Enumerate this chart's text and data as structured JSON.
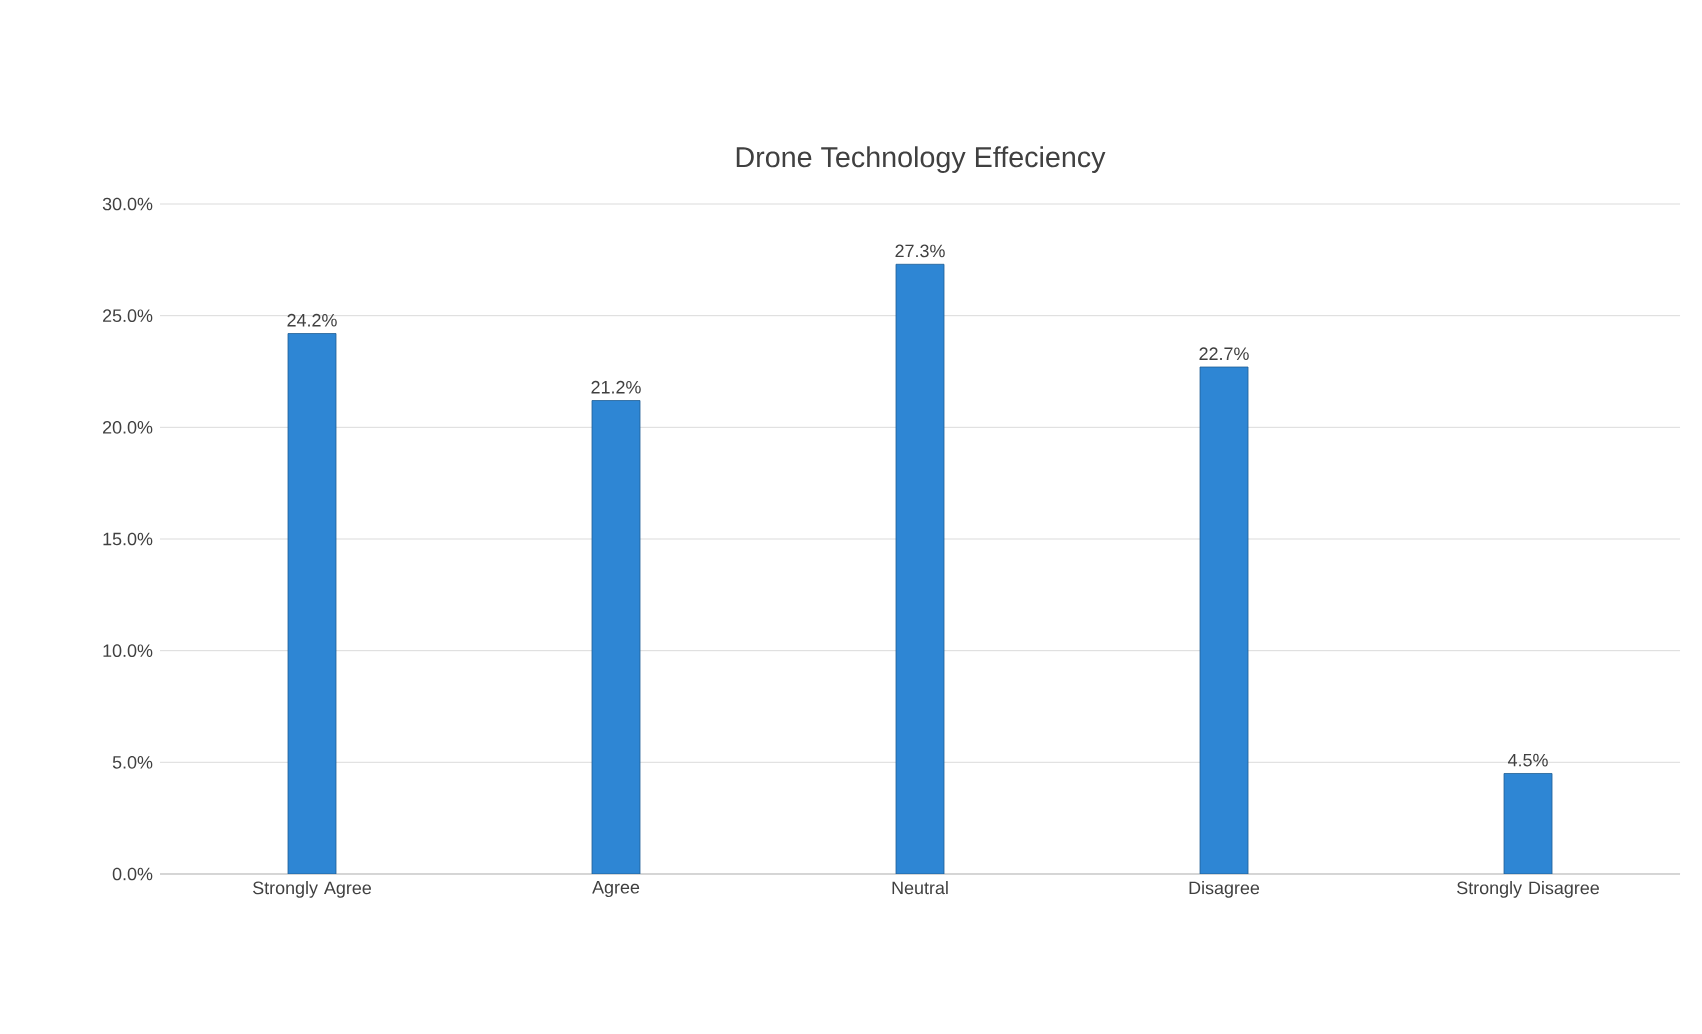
{
  "chart_data": {
    "type": "bar",
    "title": "Drone Technology Effeciency",
    "categories": [
      "Strongly Agree",
      "Agree",
      "Neutral",
      "Disagree",
      "Strongly Disagree"
    ],
    "values": [
      24.2,
      21.2,
      27.3,
      22.7,
      4.5
    ],
    "value_labels": [
      "24.2%",
      "21.2%",
      "27.3%",
      "22.7%",
      "4.5%"
    ],
    "color": "#2e86d4",
    "ylim": [
      0,
      30
    ],
    "yticks": [
      {
        "value": 0,
        "label": "0.0%"
      },
      {
        "value": 5,
        "label": "5.0%"
      },
      {
        "value": 10,
        "label": "10.0%"
      },
      {
        "value": 15,
        "label": "15.0%"
      },
      {
        "value": 20,
        "label": "20.0%"
      },
      {
        "value": 25,
        "label": "25.0%"
      },
      {
        "value": 30,
        "label": "30.0%"
      }
    ],
    "grid": "y"
  }
}
